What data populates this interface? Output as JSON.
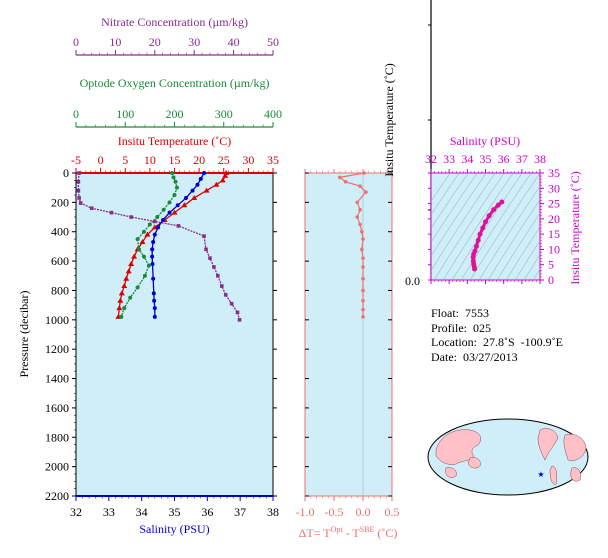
{
  "chart_data": [
    {
      "type": "line",
      "title": "",
      "ylabel": "Pressure (decibar)",
      "ylim": [
        2200,
        0
      ],
      "yticks": [
        0,
        200,
        400,
        600,
        800,
        1000,
        1200,
        1400,
        1600,
        1800,
        2000,
        2200
      ],
      "grid": false,
      "background": "#cfeef8",
      "axes": [
        {
          "key": "nitrate",
          "label": "Nitrate Concentration (µm/kg)",
          "range": [
            0,
            50
          ],
          "ticks": [
            0,
            10,
            20,
            30,
            40,
            50
          ],
          "color": "#8b2c8e",
          "position": "top-1"
        },
        {
          "key": "oxygen",
          "label": "Optode Oxygen Concentration (µm/kg)",
          "range": [
            0,
            400
          ],
          "ticks": [
            0,
            100,
            200,
            300,
            400
          ],
          "color": "#1a8a3a",
          "position": "top-2"
        },
        {
          "key": "temperature",
          "label": "Insitu Temperature (˚C)",
          "range": [
            -5,
            35
          ],
          "ticks": [
            -5,
            0,
            5,
            10,
            15,
            20,
            25,
            30,
            35
          ],
          "color": "#dd0000",
          "position": "top-3"
        },
        {
          "key": "salinity",
          "label": "Salinity (PSU)",
          "range": [
            32,
            38
          ],
          "ticks": [
            32,
            33,
            34,
            35,
            36,
            37,
            38
          ],
          "color": "#0000cc",
          "position": "bottom"
        }
      ],
      "series": [
        {
          "axis": "temperature",
          "color": "#dd0000",
          "marker": "triangle",
          "x": [
            25.5,
            25.3,
            24.8,
            23.5,
            21.5,
            19.0,
            17.0,
            15.0,
            13.0,
            11.0,
            9.5,
            8.5,
            7.5,
            6.8,
            6.2,
            5.7,
            5.2,
            4.8,
            4.3,
            4.0,
            3.8,
            3.6
          ],
          "y": [
            0,
            20,
            50,
            80,
            120,
            170,
            220,
            270,
            320,
            370,
            420,
            470,
            520,
            570,
            620,
            670,
            720,
            770,
            820,
            870,
            920,
            980
          ]
        },
        {
          "axis": "salinity",
          "color": "#0000cc",
          "marker": "circle",
          "x": [
            35.9,
            35.8,
            35.7,
            35.55,
            35.35,
            35.1,
            34.85,
            34.65,
            34.5,
            34.4,
            34.35,
            34.32,
            34.32,
            34.33,
            34.35,
            34.37,
            34.38,
            34.4,
            34.4
          ],
          "y": [
            0,
            40,
            80,
            120,
            170,
            220,
            270,
            320,
            370,
            420,
            470,
            520,
            570,
            620,
            720,
            820,
            870,
            920,
            980
          ]
        },
        {
          "axis": "oxygen",
          "color": "#1a8a3a",
          "marker": "circle",
          "x": [
            195,
            198,
            202,
            205,
            200,
            190,
            178,
            165,
            150,
            138,
            125,
            128,
            138,
            148,
            140,
            125,
            110,
            98,
            92
          ],
          "y": [
            0,
            30,
            60,
            100,
            150,
            200,
            250,
            300,
            350,
            400,
            450,
            520,
            570,
            630,
            700,
            780,
            850,
            920,
            980
          ]
        },
        {
          "axis": "nitrate",
          "color": "#8b2c8e",
          "marker": "square",
          "x": [
            0.8,
            0.6,
            0.6,
            0.8,
            1.2,
            4.0,
            9.0,
            14.0,
            20.0,
            26.0,
            32.5,
            33.0,
            34.0,
            35.0,
            36.0,
            37.0,
            38.0,
            39.5,
            41.0,
            41.5
          ],
          "y": [
            0,
            60,
            120,
            170,
            205,
            240,
            270,
            300,
            330,
            360,
            430,
            520,
            580,
            640,
            700,
            770,
            830,
            890,
            950,
            1000
          ]
        }
      ]
    },
    {
      "type": "line",
      "xlabel": "ΔT= T",
      "xlabel_sup1": "Opt",
      "xlabel_mid": " - T",
      "xlabel_sup2": "SBE",
      "xlabel_end": " (˚C)",
      "xlim": [
        -1.0,
        0.5
      ],
      "xticks": [
        "-1.0",
        "-0.5",
        "0.0",
        "0.5"
      ],
      "ylim": [
        2200,
        0
      ],
      "background": "#cfeef8",
      "color": "#f07070",
      "series": [
        {
          "name": "",
          "x": [
            0.02,
            -0.4,
            -0.3,
            -0.05,
            0.05,
            -0.1,
            -0.05,
            -0.1,
            -0.05,
            -0.02,
            0.0,
            -0.02,
            0.0,
            0.0,
            0.0,
            0.0,
            0.0,
            0.0,
            0.0
          ],
          "y": [
            0,
            30,
            60,
            90,
            130,
            200,
            250,
            300,
            350,
            400,
            450,
            520,
            580,
            640,
            720,
            800,
            870,
            930,
            980
          ]
        }
      ]
    },
    {
      "type": "scatter",
      "title": "Salinity (PSU)",
      "ylabel": "Insitu Temperature (˚C)",
      "xlim": [
        32,
        38
      ],
      "ylim": [
        0,
        35
      ],
      "xticks": [
        32,
        33,
        34,
        35,
        36,
        37,
        38
      ],
      "yticks": [
        0,
        5,
        10,
        15,
        20,
        25,
        30,
        35
      ],
      "axis_color": "#cc00cc",
      "point_color": "#e0109a",
      "background": "#cfeef8",
      "series": [
        {
          "name": "",
          "x": [
            34.4,
            34.38,
            34.35,
            34.33,
            34.32,
            34.35,
            34.42,
            34.5,
            34.6,
            34.7,
            34.85,
            35.0,
            35.2,
            35.45,
            35.7,
            35.9
          ],
          "y": [
            3.6,
            4.3,
            5.2,
            6.2,
            7.5,
            8.5,
            9.5,
            11.0,
            13.0,
            15.0,
            17.0,
            19.0,
            21.0,
            23.0,
            24.5,
            25.5
          ]
        }
      ]
    }
  ],
  "left_panel_label": {
    "ylabel": "Insitu Temperature (˚C)",
    "zero": "0.0"
  },
  "info": {
    "float": "Float:  7553",
    "profile": "Profile:  025",
    "location": "Location:  27.8˚S  -100.9˚E",
    "date": "Date:  03/27/2013"
  },
  "map": {
    "ocean_color": "#cfeef8",
    "land_color": "#ffc0c8",
    "marker_color": "#0000cc"
  }
}
